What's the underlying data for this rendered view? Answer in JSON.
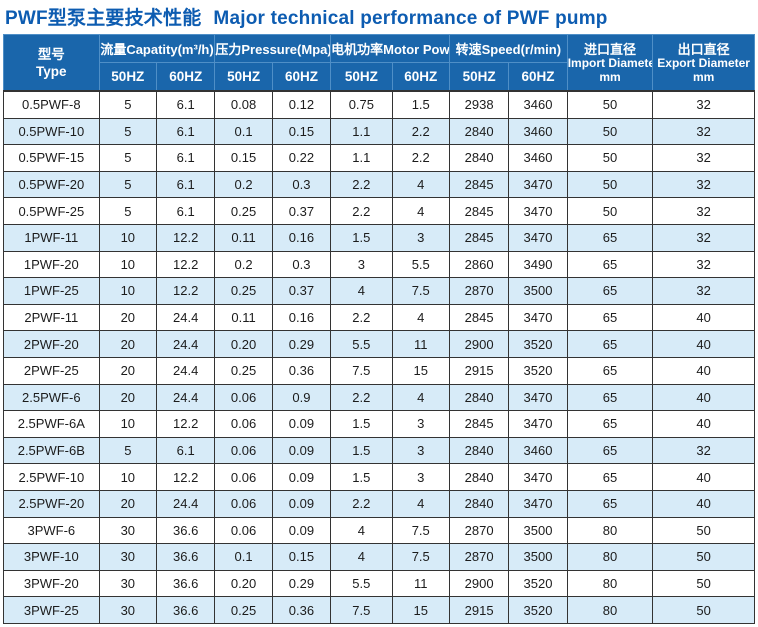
{
  "title": {
    "zh": "PWF型泵主要技术性能",
    "en": "Major technical performance of PWF pump"
  },
  "colors": {
    "title_blue": "#0d5cb1",
    "header_bg": "#1a66ab",
    "header_divider": "#4f8fc7",
    "row_alt_blue": "#d7ebf8",
    "grid_border": "#333333"
  },
  "table": {
    "header": {
      "type_col": {
        "zh": "型号",
        "en": "Type"
      },
      "groups": [
        {
          "label": "流量Capatity(m³/h)"
        },
        {
          "label": "压力Pressure(Mpa)"
        },
        {
          "label": "电机功率Motor Power(kw)"
        },
        {
          "label": "转速Speed(r/min)"
        }
      ],
      "freq_50": "50HZ",
      "freq_60": "60HZ",
      "import_col": {
        "zh": "进口直径",
        "en": "Import Diameter",
        "unit": "mm"
      },
      "export_col": {
        "zh": "出口直径",
        "en": "Export Diameter",
        "unit": "mm"
      }
    },
    "rows": [
      [
        "0.5PWF-8",
        "5",
        "6.1",
        "0.08",
        "0.12",
        "0.75",
        "1.5",
        "2938",
        "3460",
        "50",
        "32"
      ],
      [
        "0.5PWF-10",
        "5",
        "6.1",
        "0.1",
        "0.15",
        "1.1",
        "2.2",
        "2840",
        "3460",
        "50",
        "32"
      ],
      [
        "0.5PWF-15",
        "5",
        "6.1",
        "0.15",
        "0.22",
        "1.1",
        "2.2",
        "2840",
        "3460",
        "50",
        "32"
      ],
      [
        "0.5PWF-20",
        "5",
        "6.1",
        "0.2",
        "0.3",
        "2.2",
        "4",
        "2845",
        "3470",
        "50",
        "32"
      ],
      [
        "0.5PWF-25",
        "5",
        "6.1",
        "0.25",
        "0.37",
        "2.2",
        "4",
        "2845",
        "3470",
        "50",
        "32"
      ],
      [
        "1PWF-11",
        "10",
        "12.2",
        "0.11",
        "0.16",
        "1.5",
        "3",
        "2845",
        "3470",
        "65",
        "32"
      ],
      [
        "1PWF-20",
        "10",
        "12.2",
        "0.2",
        "0.3",
        "3",
        "5.5",
        "2860",
        "3490",
        "65",
        "32"
      ],
      [
        "1PWF-25",
        "10",
        "12.2",
        "0.25",
        "0.37",
        "4",
        "7.5",
        "2870",
        "3500",
        "65",
        "32"
      ],
      [
        "2PWF-11",
        "20",
        "24.4",
        "0.11",
        "0.16",
        "2.2",
        "4",
        "2845",
        "3470",
        "65",
        "40"
      ],
      [
        "2PWF-20",
        "20",
        "24.4",
        "0.20",
        "0.29",
        "5.5",
        "11",
        "2900",
        "3520",
        "65",
        "40"
      ],
      [
        "2PWF-25",
        "20",
        "24.4",
        "0.25",
        "0.36",
        "7.5",
        "15",
        "2915",
        "3520",
        "65",
        "40"
      ],
      [
        "2.5PWF-6",
        "20",
        "24.4",
        "0.06",
        "0.9",
        "2.2",
        "4",
        "2840",
        "3470",
        "65",
        "40"
      ],
      [
        "2.5PWF-6A",
        "10",
        "12.2",
        "0.06",
        "0.09",
        "1.5",
        "3",
        "2845",
        "3470",
        "65",
        "40"
      ],
      [
        "2.5PWF-6B",
        "5",
        "6.1",
        "0.06",
        "0.09",
        "1.5",
        "3",
        "2840",
        "3460",
        "65",
        "32"
      ],
      [
        "2.5PWF-10",
        "10",
        "12.2",
        "0.06",
        "0.09",
        "1.5",
        "3",
        "2840",
        "3470",
        "65",
        "40"
      ],
      [
        "2.5PWF-20",
        "20",
        "24.4",
        "0.06",
        "0.09",
        "2.2",
        "4",
        "2840",
        "3470",
        "65",
        "40"
      ],
      [
        "3PWF-6",
        "30",
        "36.6",
        "0.06",
        "0.09",
        "4",
        "7.5",
        "2870",
        "3500",
        "80",
        "50"
      ],
      [
        "3PWF-10",
        "30",
        "36.6",
        "0.1",
        "0.15",
        "4",
        "7.5",
        "2870",
        "3500",
        "80",
        "50"
      ],
      [
        "3PWF-20",
        "30",
        "36.6",
        "0.20",
        "0.29",
        "5.5",
        "11",
        "2900",
        "3520",
        "80",
        "50"
      ],
      [
        "3PWF-25",
        "30",
        "36.6",
        "0.25",
        "0.36",
        "7.5",
        "15",
        "2915",
        "3520",
        "80",
        "50"
      ]
    ]
  }
}
